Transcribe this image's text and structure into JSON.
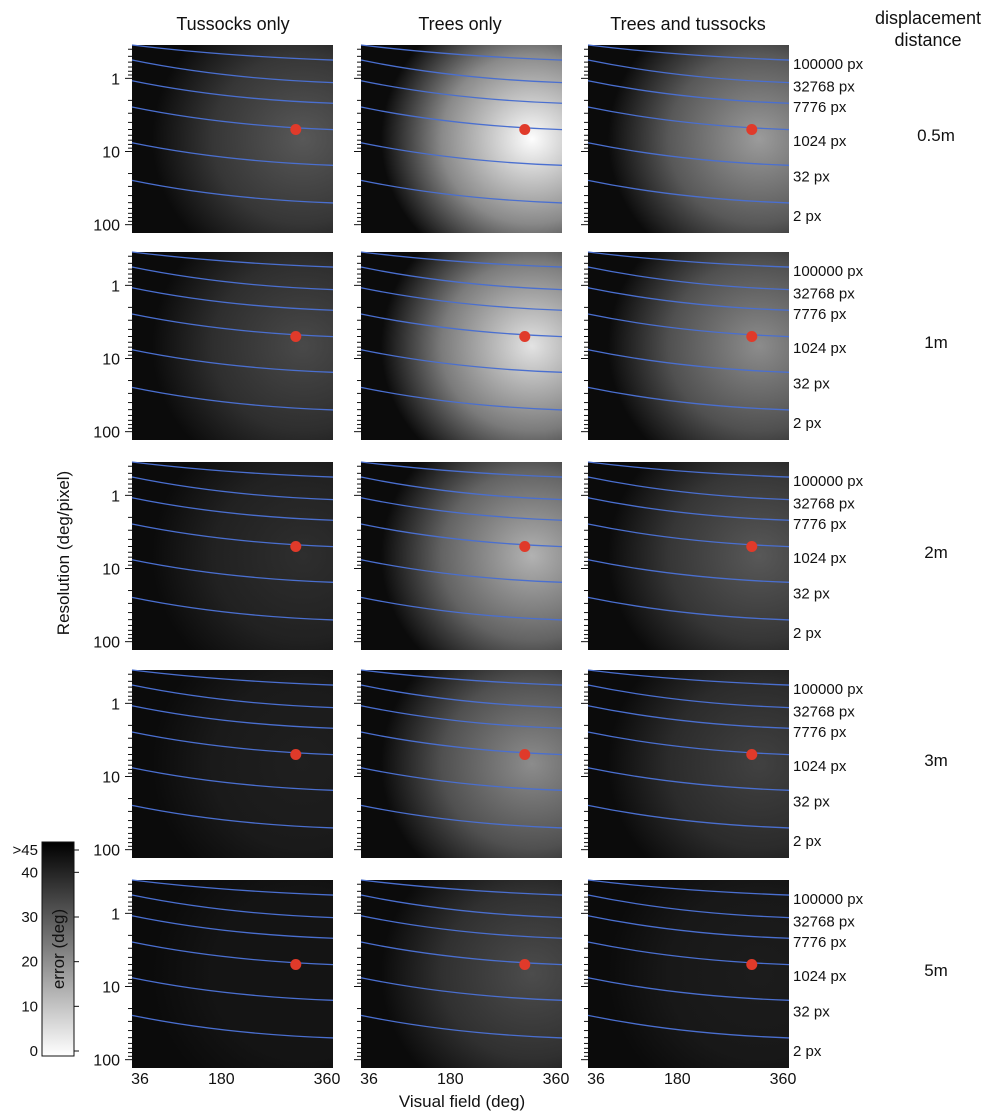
{
  "chart_data": {
    "type": "heatmap",
    "layout": "grid of contour plots, 5 rows x 3 columns",
    "columns": [
      "Tussocks only",
      "Trees only",
      "Trees and tussocks"
    ],
    "row_header": "displacement distance",
    "rows": [
      "0.5m",
      "1m",
      "2m",
      "3m",
      "5m"
    ],
    "xlabel": "Visual field (deg)",
    "ylabel": "Resolution (deg/pixel)",
    "x_ticks": [
      "36",
      "180",
      "360"
    ],
    "xlim": [
      36,
      360
    ],
    "y_scale": "log",
    "y_ticks": [
      "1",
      "10",
      "100"
    ],
    "ylim": [
      0.35,
      130
    ],
    "pixel_count_lines": {
      "color": "#4a6fd0",
      "labels": [
        "100000 px",
        "32768 px",
        "7776 px",
        "1024 px",
        "32 px",
        "2 px"
      ]
    },
    "marker": {
      "color": "#e03a2a",
      "visual_field": 300,
      "resolution": 5
    },
    "colorbar": {
      "label": "error (deg)",
      "ticks": [
        "0",
        "10",
        "20",
        "30",
        "40",
        ">45"
      ],
      "range": [
        0,
        45
      ],
      "colormap": "grayscale: white = 0, black = >45"
    },
    "panel_mean_shade": [
      [
        0.18,
        0.62,
        0.36
      ],
      [
        0.14,
        0.55,
        0.32
      ],
      [
        0.07,
        0.42,
        0.18
      ],
      [
        0.03,
        0.32,
        0.12
      ],
      [
        0.0,
        0.15,
        0.02
      ]
    ]
  }
}
